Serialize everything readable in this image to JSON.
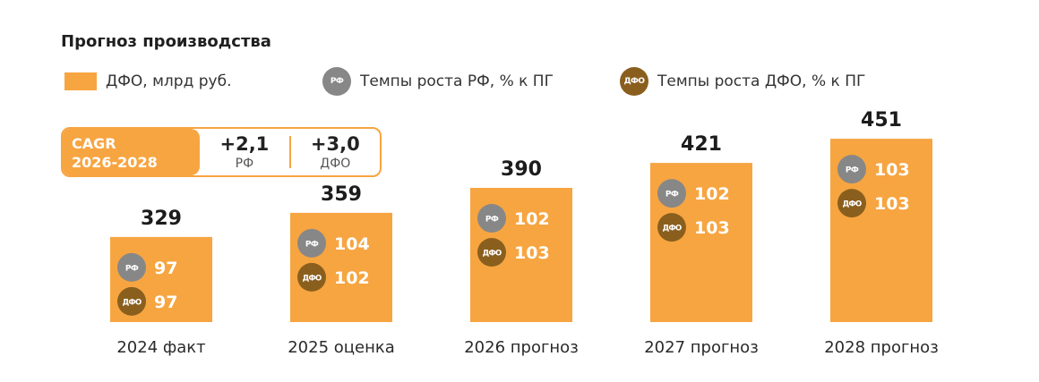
{
  "chart_data": {
    "type": "bar",
    "title": "Прогноз производства",
    "categories": [
      "2024 факт",
      "2025 оценка",
      "2026 прогноз",
      "2027 прогноз",
      "2028 прогноз"
    ],
    "series": [
      {
        "name": "ДФО, млрд руб.",
        "values": [
          329,
          359,
          390,
          421,
          451
        ]
      },
      {
        "name": "Темпы роста РФ, % к ПГ",
        "values": [
          97,
          104,
          102,
          102,
          103
        ]
      },
      {
        "name": "Темпы роста ДФО, % к ПГ",
        "values": [
          97,
          102,
          103,
          103,
          103
        ]
      }
    ],
    "xlabel": "",
    "ylabel": "",
    "grid": false,
    "legend_position": "top-left"
  },
  "legend": {
    "bar_label": "ДФО, млрд руб.",
    "rf_label": "Темпы роста РФ, % к ПГ",
    "dfo_label": "Темпы роста ДФО, % к ПГ",
    "rf_badge": "РФ",
    "dfo_badge": "ДФО"
  },
  "cagr": {
    "label_line1": "CAGR",
    "label_line2": "2026-2028",
    "rf_value": "+2,1",
    "rf_sub": "РФ",
    "dfo_value": "+3,0",
    "dfo_sub": "ДФО"
  },
  "colors": {
    "bar": "#f7a541",
    "rf_badge": "#878787",
    "dfo_badge": "#8a5f1e"
  }
}
